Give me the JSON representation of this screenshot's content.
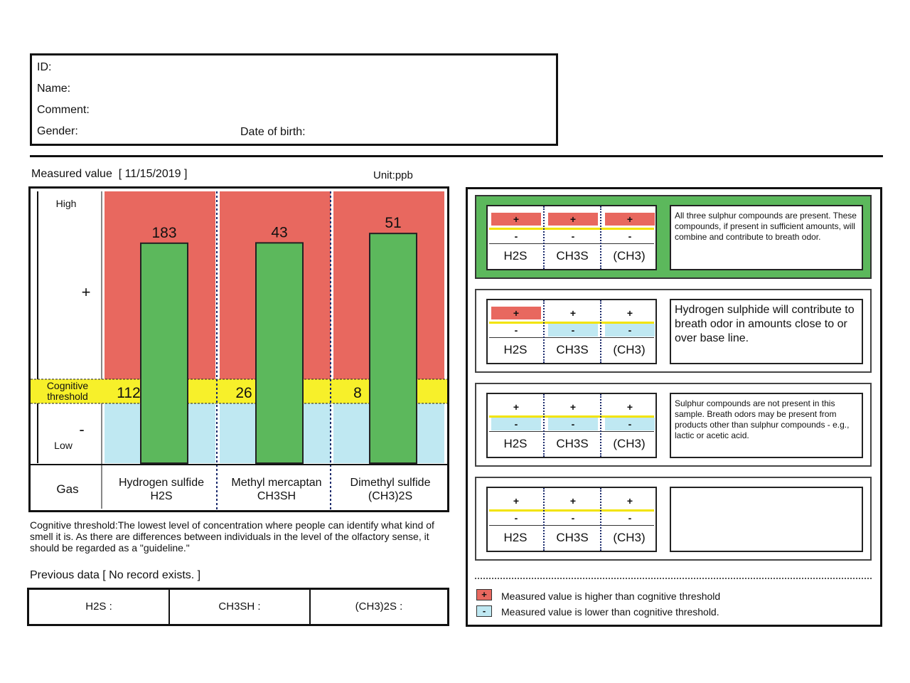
{
  "patient": {
    "id_label": "ID:",
    "name_label": "Name:",
    "comment_label": "Comment:",
    "gender_label": "Gender:",
    "dob_label": "Date of birth:"
  },
  "measured": {
    "label": "Measured value",
    "date": "[ 11/15/2019 ]",
    "unit": "Unit:ppb"
  },
  "chart_data": {
    "type": "bar",
    "categories": [
      "Hydrogen sulfide\nH2S",
      "Methyl mercaptan\nCH3SH",
      "Dimethyl sulfide\n(CH3)2S"
    ],
    "category_names": [
      "Hydrogen sulfide",
      "Methyl mercaptan",
      "Dimethyl sulfide"
    ],
    "category_codes": [
      "H2S",
      "CH3SH",
      "(CH3)2S"
    ],
    "values": [
      183,
      43,
      51
    ],
    "thresholds": [
      112,
      26,
      8
    ],
    "axis_labels": {
      "high": "High",
      "plus": "+",
      "minus": "-",
      "low": "Low"
    },
    "threshold_label_1": "Cognitive",
    "threshold_label_2": "threshold",
    "gas_label": "Gas",
    "colors": {
      "above": "#e8685f",
      "below": "#bfe8f2",
      "threshold": "#f7f02a",
      "bar": "#5cb85c"
    }
  },
  "note": "Cognitive threshold:The lowest level of concentration where people can identify what kind of smell it is. As there are differences between individuals in the level of the olfactory sense, it should be regarded as a \"guideline.\"",
  "previous": {
    "label": "Previous data [ No record exists. ]",
    "cells": [
      "H2S :",
      "CH3SH :",
      "(CH3)2S :"
    ]
  },
  "cases": [
    {
      "active": true,
      "pattern": [
        "plus",
        "plus",
        "plus"
      ],
      "gases": [
        "H2S",
        "CH3S",
        "(CH3)"
      ],
      "description": "All three sulphur compounds are present. These compounds, if present in sufficient amounts, will combine and contribute to breath odor.",
      "big": false
    },
    {
      "active": false,
      "pattern": [
        "plus",
        "minus",
        "minus"
      ],
      "gases": [
        "H2S",
        "CH3S",
        "(CH3)"
      ],
      "description": "Hydrogen sulphide will contribute to breath odor in amounts close to or over base line.",
      "big": true
    },
    {
      "active": false,
      "pattern": [
        "minus",
        "minus",
        "minus"
      ],
      "gases": [
        "H2S",
        "CH3S",
        "(CH3)"
      ],
      "description": "Sulphur compounds are not present in this sample. Breath odors may be present from products other than sulphur compounds - e.g., lactic or acetic acid.",
      "big": false
    },
    {
      "active": false,
      "pattern": [
        "none",
        "none",
        "none"
      ],
      "gases": [
        "H2S",
        "CH3S",
        "(CH3)"
      ],
      "description": "",
      "big": false
    }
  ],
  "case_marks": {
    "plus": "+",
    "minus": "-"
  },
  "legend": {
    "plus_symbol": "+",
    "minus_symbol": "-",
    "plus_text": "Measured value is higher than cognitive threshold",
    "minus_text": "Measured value is lower than cognitive threshold."
  }
}
